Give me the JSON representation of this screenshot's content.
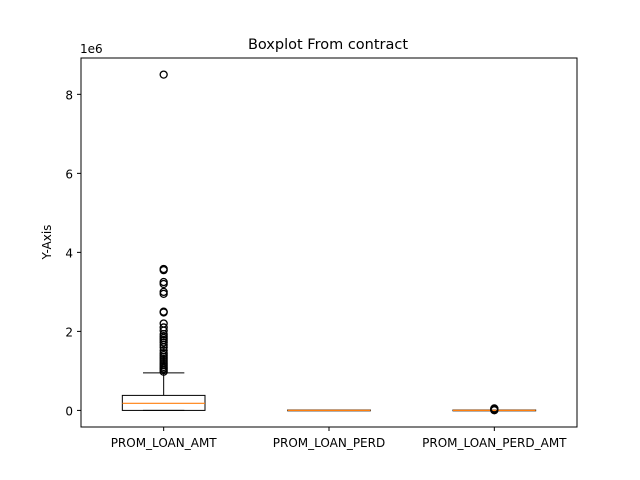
{
  "chart_data": {
    "type": "boxplot",
    "title": "Boxplot From contract",
    "xlabel": "",
    "ylabel": "Y-Axis",
    "y_offset_label": "1e6",
    "ylim": [
      -0.42,
      8.92
    ],
    "yticks": [
      0,
      2,
      4,
      6,
      8
    ],
    "categories": [
      "PROM_LOAN_AMT",
      "PROM_LOAN_PERD",
      "PROM_LOAN_PERD_AMT"
    ],
    "grid": false,
    "colors": {
      "box": "#000000",
      "median": "#ff7f0e",
      "flier": "#000000"
    },
    "boxes": [
      {
        "category": "PROM_LOAN_AMT",
        "whisker_low": 0.0,
        "q1": 0.0,
        "median": 0.18,
        "q3": 0.38,
        "whisker_high": 0.95,
        "fliers": [
          0.98,
          1.02,
          1.06,
          1.1,
          1.15,
          1.2,
          1.25,
          1.3,
          1.35,
          1.4,
          1.45,
          1.52,
          1.6,
          1.66,
          1.72,
          1.78,
          1.83,
          1.88,
          1.93,
          2.02,
          2.1,
          2.2,
          2.48,
          2.5,
          2.95,
          3.0,
          3.2,
          3.25,
          3.55,
          3.58,
          8.5
        ]
      },
      {
        "category": "PROM_LOAN_PERD",
        "whisker_low": 0.0,
        "q1": 0.0,
        "median": 0.0,
        "q3": 0.0,
        "whisker_high": 0.0,
        "fliers": []
      },
      {
        "category": "PROM_LOAN_PERD_AMT",
        "whisker_low": 0.0,
        "q1": 0.0,
        "median": 0.0,
        "q3": 0.0,
        "whisker_high": 0.0,
        "fliers": [
          0.005,
          0.01,
          0.02,
          0.03,
          0.04,
          0.05
        ]
      }
    ]
  }
}
